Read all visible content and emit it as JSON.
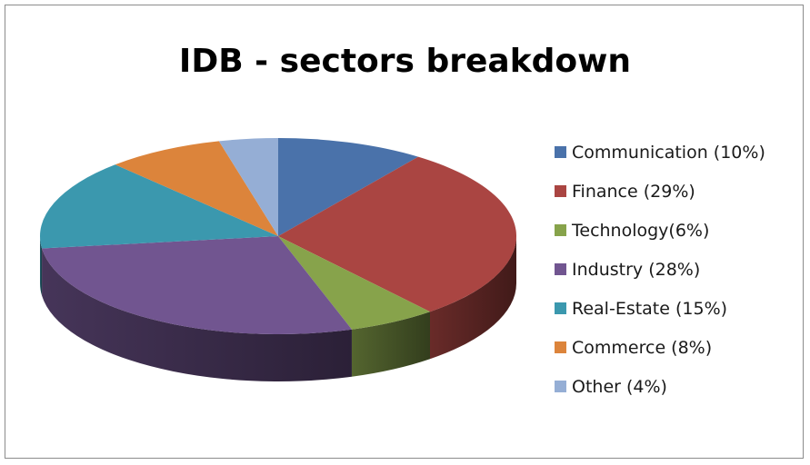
{
  "chart_data": {
    "type": "pie",
    "title": "IDB - sectors breakdown",
    "legend_position": "right",
    "three_d": true,
    "slices": [
      {
        "label": "Communication (10%)",
        "value": 10,
        "color": "#4a72aa"
      },
      {
        "label": "Finance (29%)",
        "value": 29,
        "color": "#aa4542"
      },
      {
        "label": "Technology(6%)",
        "value": 6,
        "color": "#87a34b"
      },
      {
        "label": "Industry (28%)",
        "value": 28,
        "color": "#715590"
      },
      {
        "label": "Real-Estate (15%)",
        "value": 15,
        "color": "#3b98ae"
      },
      {
        "label": "Commerce (8%)",
        "value": 8,
        "color": "#dc843b"
      },
      {
        "label": "Other (4%)",
        "value": 4,
        "color": "#95aed5"
      }
    ]
  }
}
